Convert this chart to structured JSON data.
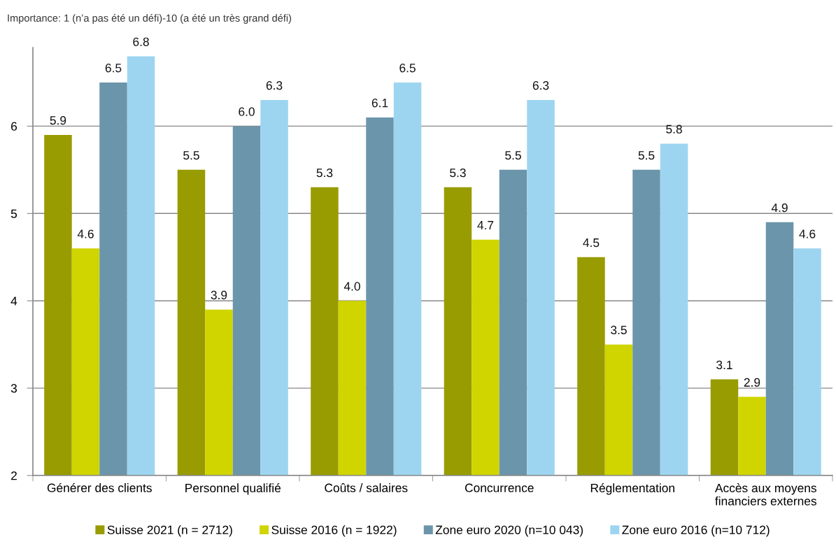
{
  "chart_data": {
    "type": "bar",
    "ylabel": "Importance: 1 (n’a pas été un défi)-10 (a été un très grand défi)",
    "categories": [
      "Générer des clients",
      "Personnel qualifié",
      "Coûts / salaires",
      "Concurrence",
      "Réglementation",
      "Accès aux moyens\nfinanciers externes"
    ],
    "series": [
      {
        "name": "Suisse 2021 (n = 2712)",
        "color": "#989c00",
        "values": [
          5.9,
          5.5,
          5.3,
          5.3,
          4.5,
          3.1
        ],
        "value_labels": [
          "5.9",
          "5.5",
          "5.3",
          "5.3",
          "4.5",
          "3.1"
        ]
      },
      {
        "name": "Suisse 2016 (n = 1922)",
        "color": "#d0d500",
        "values": [
          4.6,
          3.9,
          4.0,
          4.7,
          3.5,
          2.9
        ],
        "value_labels": [
          "4.6",
          "3.9",
          "4.0",
          "4.7",
          "3.5",
          "2.9"
        ]
      },
      {
        "name": "Zone euro 2020 (n=10 043)",
        "color": "#6b95aa",
        "values": [
          6.5,
          6.0,
          6.1,
          5.5,
          5.5,
          4.9
        ],
        "value_labels": [
          "6.5",
          "6.0",
          "6.1",
          "5.5",
          "5.5",
          "4.9"
        ]
      },
      {
        "name": "Zone euro 2016 (n=10 712)",
        "color": "#9dd5f0",
        "values": [
          6.8,
          6.3,
          6.5,
          6.3,
          5.8,
          4.6
        ],
        "value_labels": [
          "6.8",
          "6.3",
          "6.5",
          "6.3",
          "5.8",
          "4.6"
        ]
      }
    ],
    "ylim": [
      2,
      6.9
    ],
    "yticks": [
      2,
      3,
      4,
      5,
      6
    ],
    "grid": "y",
    "legend": "bottom"
  }
}
